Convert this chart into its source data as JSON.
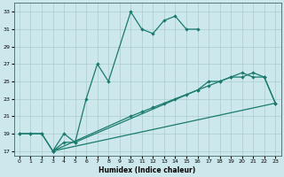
{
  "xlabel": "Humidex (Indice chaleur)",
  "bg_color": "#cce8ec",
  "line_color": "#1a7a6e",
  "grid_color": "#aacccc",
  "xlim": [
    -0.5,
    23.5
  ],
  "ylim": [
    16.5,
    34.0
  ],
  "xticks": [
    0,
    1,
    2,
    3,
    4,
    5,
    6,
    7,
    8,
    9,
    10,
    11,
    12,
    13,
    14,
    15,
    16,
    17,
    18,
    19,
    20,
    21,
    22,
    23
  ],
  "yticks": [
    17,
    19,
    21,
    23,
    25,
    27,
    29,
    31,
    33
  ],
  "line1_x": [
    0,
    1,
    2,
    3,
    4,
    5,
    6,
    7,
    8,
    10,
    11,
    12,
    13,
    14,
    15,
    16
  ],
  "line1_y": [
    19,
    19,
    19,
    17,
    19,
    18,
    23,
    27,
    25,
    33,
    31,
    30.5,
    32,
    32.5,
    31,
    31
  ],
  "line2_x": [
    0,
    1,
    2,
    3,
    4,
    5,
    16,
    17,
    18,
    19,
    20,
    21,
    22,
    23
  ],
  "line2_y": [
    19,
    19,
    19,
    17,
    18,
    18,
    24,
    25,
    25,
    25.5,
    26,
    25.5,
    25.5,
    22.5
  ],
  "line3_x": [
    3,
    10,
    11,
    12,
    13,
    14,
    15,
    16,
    17,
    18,
    19,
    20,
    21,
    22,
    23
  ],
  "line3_y": [
    17,
    21,
    21.5,
    22,
    22.5,
    23,
    23.5,
    24,
    24.5,
    25,
    25.5,
    25.5,
    26,
    25.5,
    22.5
  ],
  "line4_x": [
    3,
    23
  ],
  "line4_y": [
    17,
    22.5
  ]
}
